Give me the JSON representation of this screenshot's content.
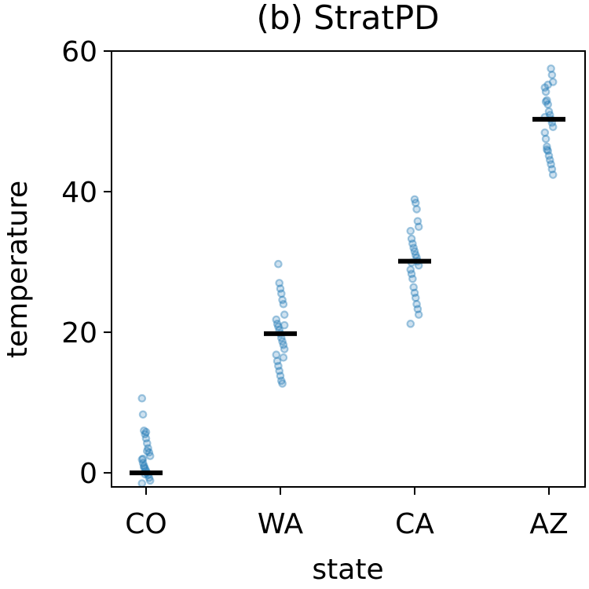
{
  "chart_data": {
    "type": "scatter",
    "title": "(b) StratPD",
    "xlabel": "state",
    "ylabel": "temperature",
    "categories": [
      "CO",
      "WA",
      "CA",
      "AZ"
    ],
    "ylim": [
      -2,
      60
    ],
    "yticks": [
      0,
      20,
      40,
      60
    ],
    "grid": false,
    "point_color": "#1f77b4",
    "mean_color": "#000000",
    "means": [
      0.0,
      19.8,
      30.1,
      50.3
    ],
    "series": [
      {
        "category": "CO",
        "values": [
          10.6,
          8.3,
          6.0,
          5.5,
          4.9,
          4.2,
          3.5,
          2.9,
          2.4,
          1.9,
          1.4,
          1.0,
          0.6,
          0.3,
          0.0,
          -0.3,
          -0.7,
          -1.1,
          -1.5,
          2.0,
          0.8,
          -0.2,
          5.8,
          3.1
        ]
      },
      {
        "category": "WA",
        "values": [
          29.7,
          27.0,
          26.2,
          25.5,
          24.6,
          24.0,
          22.5,
          21.8,
          21.2,
          20.8,
          20.3,
          19.8,
          19.2,
          18.7,
          18.2,
          17.6,
          16.8,
          15.9,
          15.2,
          14.5,
          13.8,
          13.1,
          12.7,
          16.4,
          21.0
        ]
      },
      {
        "category": "CA",
        "values": [
          38.9,
          38.4,
          37.5,
          35.8,
          35.0,
          34.4,
          33.3,
          32.6,
          32.0,
          31.5,
          31.0,
          30.6,
          30.1,
          29.5,
          28.9,
          28.3,
          27.6,
          26.4,
          25.6,
          24.9,
          24.0,
          23.3,
          22.5,
          21.2,
          29.9
        ]
      },
      {
        "category": "AZ",
        "values": [
          57.5,
          56.6,
          55.6,
          54.8,
          54.2,
          53.0,
          52.4,
          51.4,
          50.9,
          50.3,
          49.8,
          49.2,
          48.4,
          47.5,
          46.4,
          45.8,
          45.1,
          44.5,
          43.9,
          43.2,
          42.4,
          50.6,
          52.8,
          46.0,
          55.2
        ]
      }
    ]
  }
}
